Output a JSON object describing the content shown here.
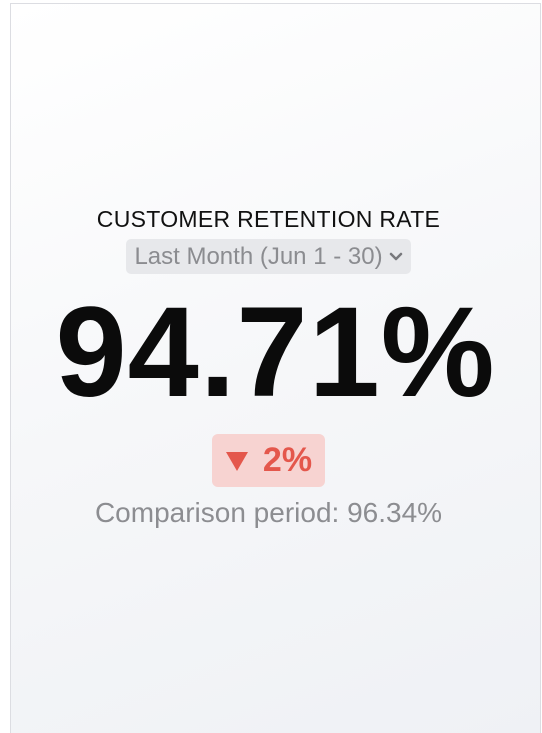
{
  "widget": {
    "title": "CUSTOMER RETENTION RATE",
    "period": "Last Month (Jun 1 - 30)",
    "value": "94.71%",
    "change": "2%",
    "comparison": "Comparison period: 96.34%"
  }
}
